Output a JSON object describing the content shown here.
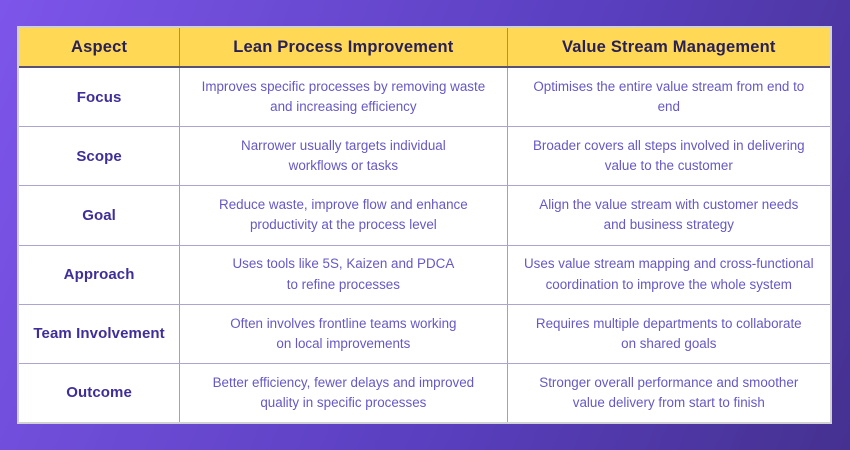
{
  "page": {
    "background_gradient": [
      "#7D55EA",
      "#5A3FC0",
      "#453190"
    ]
  },
  "table": {
    "header": {
      "bg_color": "#FFD955",
      "text_color": "#292056",
      "columns": [
        "Aspect",
        "Lean Process Improvement",
        "Value Stream Management"
      ]
    },
    "body": {
      "aspect_color": "#3F2E99",
      "text_color": "#6658C6",
      "rows": [
        {
          "aspect": "Focus",
          "lean": "Improves specific processes by removing waste\nand increasing efficiency",
          "vsm": "Optimises the entire value stream from end to end"
        },
        {
          "aspect": "Scope",
          "lean": "Narrower usually targets individual\nworkflows or tasks",
          "vsm": "Broader covers all steps involved in delivering\nvalue to the customer"
        },
        {
          "aspect": "Goal",
          "lean": "Reduce waste, improve flow and enhance\nproductivity at the process level",
          "vsm": "Align the value stream with customer needs\nand business strategy"
        },
        {
          "aspect": "Approach",
          "lean": "Uses tools like 5S, Kaizen and PDCA\nto refine processes",
          "vsm": "Uses value stream mapping and cross-functional\ncoordination to improve the whole system"
        },
        {
          "aspect": "Team Involvement",
          "lean": "Often involves frontline teams working\non local improvements",
          "vsm": "Requires multiple departments to collaborate\non shared goals"
        },
        {
          "aspect": "Outcome",
          "lean": "Better efficiency, fewer delays and improved\nquality in specific processes",
          "vsm": "Stronger overall performance and smoother\nvalue delivery from start to finish"
        }
      ]
    }
  }
}
